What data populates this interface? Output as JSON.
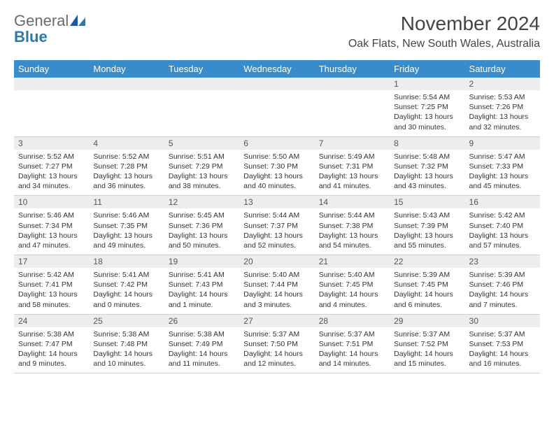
{
  "brand": {
    "name_gray": "General",
    "name_blue": "Blue"
  },
  "title": "November 2024",
  "location": "Oak Flats, New South Wales, Australia",
  "colors": {
    "header_bg": "#3a8bc9",
    "header_fg": "#ffffff",
    "daynum_bg": "#ededed",
    "row_border": "#c9d3dc",
    "text": "#333333",
    "brand_gray": "#6b6b6b",
    "brand_blue": "#2a7ab0"
  },
  "day_headers": [
    "Sunday",
    "Monday",
    "Tuesday",
    "Wednesday",
    "Thursday",
    "Friday",
    "Saturday"
  ],
  "weeks": [
    [
      {
        "empty": true
      },
      {
        "empty": true
      },
      {
        "empty": true
      },
      {
        "empty": true
      },
      {
        "empty": true
      },
      {
        "n": "1",
        "sunrise": "Sunrise: 5:54 AM",
        "sunset": "Sunset: 7:25 PM",
        "daylight": "Daylight: 13 hours and 30 minutes."
      },
      {
        "n": "2",
        "sunrise": "Sunrise: 5:53 AM",
        "sunset": "Sunset: 7:26 PM",
        "daylight": "Daylight: 13 hours and 32 minutes."
      }
    ],
    [
      {
        "n": "3",
        "sunrise": "Sunrise: 5:52 AM",
        "sunset": "Sunset: 7:27 PM",
        "daylight": "Daylight: 13 hours and 34 minutes."
      },
      {
        "n": "4",
        "sunrise": "Sunrise: 5:52 AM",
        "sunset": "Sunset: 7:28 PM",
        "daylight": "Daylight: 13 hours and 36 minutes."
      },
      {
        "n": "5",
        "sunrise": "Sunrise: 5:51 AM",
        "sunset": "Sunset: 7:29 PM",
        "daylight": "Daylight: 13 hours and 38 minutes."
      },
      {
        "n": "6",
        "sunrise": "Sunrise: 5:50 AM",
        "sunset": "Sunset: 7:30 PM",
        "daylight": "Daylight: 13 hours and 40 minutes."
      },
      {
        "n": "7",
        "sunrise": "Sunrise: 5:49 AM",
        "sunset": "Sunset: 7:31 PM",
        "daylight": "Daylight: 13 hours and 41 minutes."
      },
      {
        "n": "8",
        "sunrise": "Sunrise: 5:48 AM",
        "sunset": "Sunset: 7:32 PM",
        "daylight": "Daylight: 13 hours and 43 minutes."
      },
      {
        "n": "9",
        "sunrise": "Sunrise: 5:47 AM",
        "sunset": "Sunset: 7:33 PM",
        "daylight": "Daylight: 13 hours and 45 minutes."
      }
    ],
    [
      {
        "n": "10",
        "sunrise": "Sunrise: 5:46 AM",
        "sunset": "Sunset: 7:34 PM",
        "daylight": "Daylight: 13 hours and 47 minutes."
      },
      {
        "n": "11",
        "sunrise": "Sunrise: 5:46 AM",
        "sunset": "Sunset: 7:35 PM",
        "daylight": "Daylight: 13 hours and 49 minutes."
      },
      {
        "n": "12",
        "sunrise": "Sunrise: 5:45 AM",
        "sunset": "Sunset: 7:36 PM",
        "daylight": "Daylight: 13 hours and 50 minutes."
      },
      {
        "n": "13",
        "sunrise": "Sunrise: 5:44 AM",
        "sunset": "Sunset: 7:37 PM",
        "daylight": "Daylight: 13 hours and 52 minutes."
      },
      {
        "n": "14",
        "sunrise": "Sunrise: 5:44 AM",
        "sunset": "Sunset: 7:38 PM",
        "daylight": "Daylight: 13 hours and 54 minutes."
      },
      {
        "n": "15",
        "sunrise": "Sunrise: 5:43 AM",
        "sunset": "Sunset: 7:39 PM",
        "daylight": "Daylight: 13 hours and 55 minutes."
      },
      {
        "n": "16",
        "sunrise": "Sunrise: 5:42 AM",
        "sunset": "Sunset: 7:40 PM",
        "daylight": "Daylight: 13 hours and 57 minutes."
      }
    ],
    [
      {
        "n": "17",
        "sunrise": "Sunrise: 5:42 AM",
        "sunset": "Sunset: 7:41 PM",
        "daylight": "Daylight: 13 hours and 58 minutes."
      },
      {
        "n": "18",
        "sunrise": "Sunrise: 5:41 AM",
        "sunset": "Sunset: 7:42 PM",
        "daylight": "Daylight: 14 hours and 0 minutes."
      },
      {
        "n": "19",
        "sunrise": "Sunrise: 5:41 AM",
        "sunset": "Sunset: 7:43 PM",
        "daylight": "Daylight: 14 hours and 1 minute."
      },
      {
        "n": "20",
        "sunrise": "Sunrise: 5:40 AM",
        "sunset": "Sunset: 7:44 PM",
        "daylight": "Daylight: 14 hours and 3 minutes."
      },
      {
        "n": "21",
        "sunrise": "Sunrise: 5:40 AM",
        "sunset": "Sunset: 7:45 PM",
        "daylight": "Daylight: 14 hours and 4 minutes."
      },
      {
        "n": "22",
        "sunrise": "Sunrise: 5:39 AM",
        "sunset": "Sunset: 7:45 PM",
        "daylight": "Daylight: 14 hours and 6 minutes."
      },
      {
        "n": "23",
        "sunrise": "Sunrise: 5:39 AM",
        "sunset": "Sunset: 7:46 PM",
        "daylight": "Daylight: 14 hours and 7 minutes."
      }
    ],
    [
      {
        "n": "24",
        "sunrise": "Sunrise: 5:38 AM",
        "sunset": "Sunset: 7:47 PM",
        "daylight": "Daylight: 14 hours and 9 minutes."
      },
      {
        "n": "25",
        "sunrise": "Sunrise: 5:38 AM",
        "sunset": "Sunset: 7:48 PM",
        "daylight": "Daylight: 14 hours and 10 minutes."
      },
      {
        "n": "26",
        "sunrise": "Sunrise: 5:38 AM",
        "sunset": "Sunset: 7:49 PM",
        "daylight": "Daylight: 14 hours and 11 minutes."
      },
      {
        "n": "27",
        "sunrise": "Sunrise: 5:37 AM",
        "sunset": "Sunset: 7:50 PM",
        "daylight": "Daylight: 14 hours and 12 minutes."
      },
      {
        "n": "28",
        "sunrise": "Sunrise: 5:37 AM",
        "sunset": "Sunset: 7:51 PM",
        "daylight": "Daylight: 14 hours and 14 minutes."
      },
      {
        "n": "29",
        "sunrise": "Sunrise: 5:37 AM",
        "sunset": "Sunset: 7:52 PM",
        "daylight": "Daylight: 14 hours and 15 minutes."
      },
      {
        "n": "30",
        "sunrise": "Sunrise: 5:37 AM",
        "sunset": "Sunset: 7:53 PM",
        "daylight": "Daylight: 14 hours and 16 minutes."
      }
    ]
  ]
}
